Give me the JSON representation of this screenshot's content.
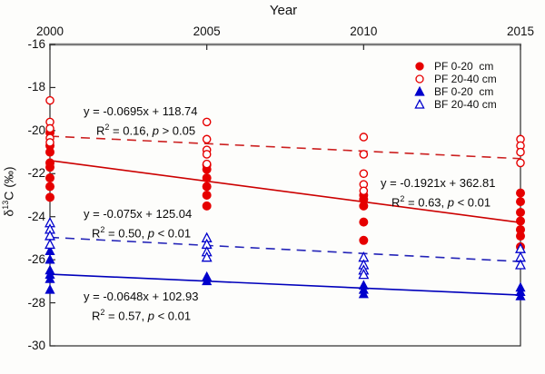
{
  "axis_titles": {
    "x": "Year",
    "y_delta": "δ",
    "y_sup": "13",
    "y_rest": "C (‰)"
  },
  "chart_data": {
    "type": "scatter",
    "title": "",
    "xlabel": "Year",
    "ylabel": "δ13C (‰)",
    "xlim": [
      2000,
      2015
    ],
    "ylim": [
      -30,
      -16
    ],
    "x_ticks": [
      "2000",
      "2005",
      "2010",
      "2015"
    ],
    "y_ticks": [
      "-16",
      "-18",
      "-20",
      "-22",
      "-24",
      "-26",
      "-28",
      "-30"
    ],
    "grid": false,
    "legend_position": "top-right",
    "series": [
      {
        "name": "PF 0-20  cm",
        "marker": "circle",
        "fill": "filled",
        "color": "#e60000",
        "points": [
          [
            2000,
            -20.1
          ],
          [
            2000,
            -20.7
          ],
          [
            2000,
            -21.0
          ],
          [
            2000,
            -21.5
          ],
          [
            2000,
            -21.7
          ],
          [
            2000,
            -22.2
          ],
          [
            2000,
            -22.6
          ],
          [
            2000,
            -23.1
          ],
          [
            2005,
            -21.6
          ],
          [
            2005,
            -21.8
          ],
          [
            2005,
            -22.2
          ],
          [
            2005,
            -22.6
          ],
          [
            2005,
            -23.0
          ],
          [
            2005,
            -23.5
          ],
          [
            2010,
            -23.0
          ],
          [
            2010,
            -23.2
          ],
          [
            2010,
            -23.5
          ],
          [
            2010,
            -24.25
          ],
          [
            2010,
            -25.1
          ],
          [
            2015,
            -22.9
          ],
          [
            2015,
            -23.3
          ],
          [
            2015,
            -23.8
          ],
          [
            2015,
            -24.2
          ],
          [
            2015,
            -24.6
          ],
          [
            2015,
            -24.9
          ],
          [
            2015,
            -25.4
          ]
        ]
      },
      {
        "name": "PF 20-40 cm",
        "marker": "circle",
        "fill": "open",
        "color": "#e60000",
        "points": [
          [
            2000,
            -18.6
          ],
          [
            2000,
            -19.6
          ],
          [
            2000,
            -19.9
          ],
          [
            2000,
            -20.35
          ],
          [
            2000,
            -20.55
          ],
          [
            2005,
            -19.6
          ],
          [
            2005,
            -20.4
          ],
          [
            2005,
            -20.9
          ],
          [
            2005,
            -21.1
          ],
          [
            2005,
            -21.55
          ],
          [
            2010,
            -20.3
          ],
          [
            2010,
            -21.1
          ],
          [
            2010,
            -22.0
          ],
          [
            2010,
            -22.5
          ],
          [
            2010,
            -22.8
          ],
          [
            2015,
            -20.4
          ],
          [
            2015,
            -20.7
          ],
          [
            2015,
            -21.0
          ],
          [
            2015,
            -21.5
          ]
        ]
      },
      {
        "name": "BF 0-20  cm",
        "marker": "triangle",
        "fill": "filled",
        "color": "#0000cc",
        "points": [
          [
            2000,
            -25.6
          ],
          [
            2000,
            -26.0
          ],
          [
            2000,
            -26.5
          ],
          [
            2000,
            -26.7
          ],
          [
            2000,
            -26.9
          ],
          [
            2000,
            -27.4
          ],
          [
            2005,
            -26.8
          ],
          [
            2005,
            -27.0
          ],
          [
            2010,
            -27.2
          ],
          [
            2010,
            -27.4
          ],
          [
            2010,
            -27.6
          ],
          [
            2015,
            -27.3
          ],
          [
            2015,
            -27.5
          ],
          [
            2015,
            -27.7
          ]
        ]
      },
      {
        "name": "BF 20-40 cm",
        "marker": "triangle",
        "fill": "open",
        "color": "#0000cc",
        "points": [
          [
            2000,
            -24.3
          ],
          [
            2000,
            -24.6
          ],
          [
            2000,
            -24.9
          ],
          [
            2000,
            -25.3
          ],
          [
            2005,
            -25.0
          ],
          [
            2005,
            -25.3
          ],
          [
            2005,
            -25.65
          ],
          [
            2005,
            -25.9
          ],
          [
            2010,
            -25.9
          ],
          [
            2010,
            -26.25
          ],
          [
            2010,
            -26.5
          ],
          [
            2010,
            -26.7
          ],
          [
            2015,
            -25.5
          ],
          [
            2015,
            -25.9
          ],
          [
            2015,
            -26.25
          ]
        ]
      }
    ],
    "regressions": [
      {
        "series": "PF 20-40 cm",
        "slope": -0.0695,
        "intercept": 118.74,
        "style": "dashed",
        "color": "#cc2020",
        "r2": 0.16,
        "p": "> 0.05"
      },
      {
        "series": "PF 0-20 cm",
        "slope": -0.1921,
        "intercept": 362.81,
        "style": "solid",
        "color": "#cc0000",
        "r2": 0.63,
        "p": "< 0.01"
      },
      {
        "series": "BF 20-40 cm",
        "slope": -0.075,
        "intercept": 125.04,
        "style": "dashed",
        "color": "#2424b8",
        "r2": 0.5,
        "p": "< 0.01"
      },
      {
        "series": "BF 0-20 cm",
        "slope": -0.0648,
        "intercept": 102.93,
        "style": "solid",
        "color": "#0000bb",
        "r2": 0.57,
        "p": "< 0.01"
      }
    ]
  },
  "equations": [
    {
      "line1": "y = -0.0695x + 118.74",
      "r_label": "R",
      "r_sup": "2",
      "r_mid": " = 0.16, ",
      "p_label": "p",
      "p_rest": " > 0.05"
    },
    {
      "line1": "y = -0.1921x + 362.81",
      "r_label": "R",
      "r_sup": "2",
      "r_mid": " = 0.63, ",
      "p_label": "p",
      "p_rest": " < 0.01"
    },
    {
      "line1": "y = -0.075x + 125.04",
      "r_label": "R",
      "r_sup": "2",
      "r_mid": " = 0.50, ",
      "p_label": "p",
      "p_rest": " < 0.01"
    },
    {
      "line1": "y = -0.0648x + 102.93",
      "r_label": "R",
      "r_sup": "2",
      "r_mid": " = 0.57, ",
      "p_label": "p",
      "p_rest": " < 0.01"
    }
  ]
}
